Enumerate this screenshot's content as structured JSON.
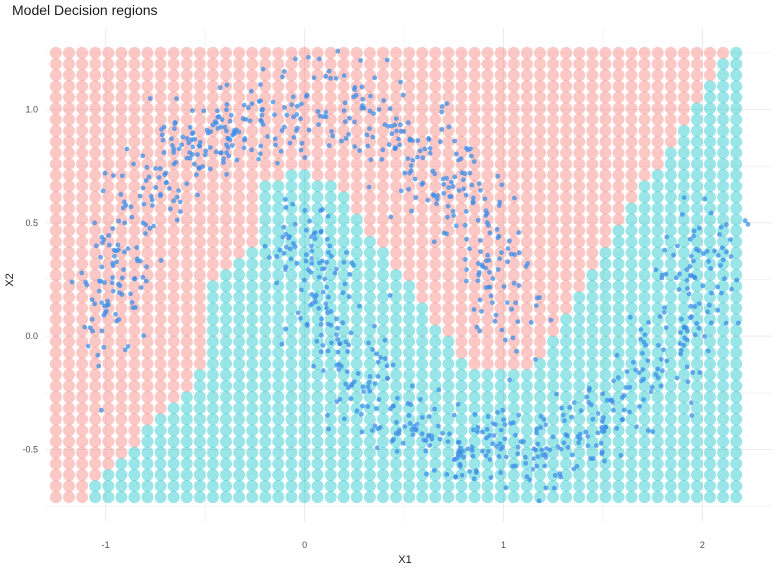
{
  "chart_data": {
    "type": "scatter",
    "title": "Model Decision regions",
    "xlabel": "X1",
    "ylabel": "X2",
    "xlim": [
      -1.3,
      2.35
    ],
    "ylim": [
      -0.82,
      1.36
    ],
    "x_ticks": [
      -1,
      0,
      1,
      2
    ],
    "y_ticks": [
      -0.5,
      0.0,
      0.5,
      1.0
    ],
    "x_tick_labels": [
      "-1",
      "0",
      "1",
      "2"
    ],
    "y_tick_labels": [
      "-0.5",
      "0.0",
      "0.5",
      "1.0"
    ],
    "grid": true,
    "legend": "none",
    "region_colors": {
      "upper_moon_class": "#f8766d",
      "lower_moon_class": "#00bfc4"
    },
    "point_color": "#3d8ee8",
    "decision_grid": {
      "x_range": [
        -1.25,
        2.17
      ],
      "y_range": [
        -0.71,
        1.25
      ],
      "x_count": 53,
      "y_count": 41
    },
    "observations": {
      "count": 1000,
      "upper_moon": {
        "center": [
          0,
          0
        ],
        "radius": 1,
        "angle_range_deg": [
          0,
          180
        ],
        "noise_sd": 0.1
      },
      "lower_moon": {
        "center": [
          1,
          0.5
        ],
        "radius": 1,
        "angle_range_deg": [
          180,
          360
        ],
        "noise_sd": 0.1
      }
    }
  }
}
